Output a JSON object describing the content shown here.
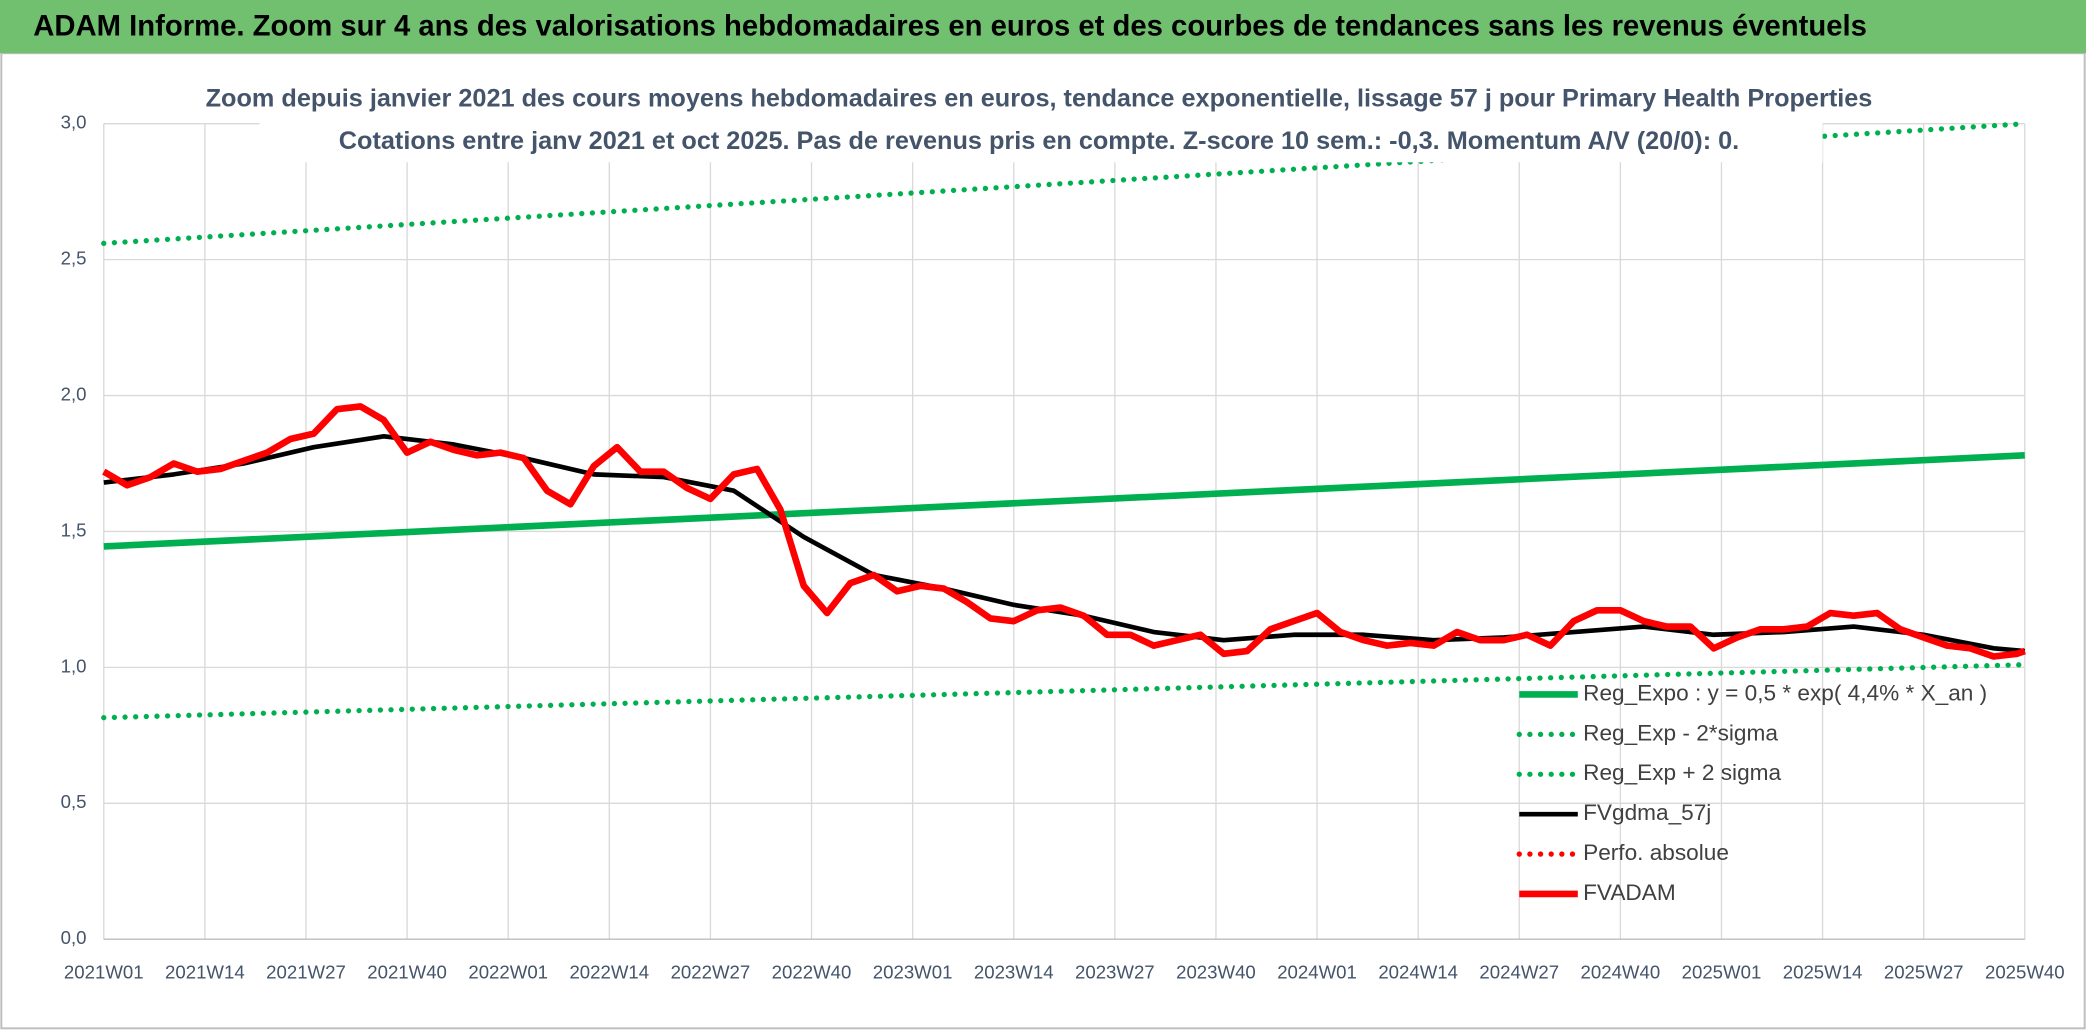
{
  "chart_data": {
    "type": "line",
    "title": "ADAM Informe. Zoom sur 4 ans des valorisations hebdomadaires en euros et des courbes de tendances sans les revenus éventuels",
    "subtitle": [
      "Zoom depuis janvier 2021 des cours moyens hebdomadaires en euros, tendance exponentielle, lissage 57 j pour Primary Health Properties",
      "Cotations entre janv 2021 et oct 2025. Pas de revenus pris en compte. Z-score 10 sem.: -0,3. Momentum A/V (20/0): 0."
    ],
    "xlim": [
      0,
      247
    ],
    "xticks": [
      {
        "value": 0,
        "label": "2021W01"
      },
      {
        "value": 13,
        "label": "2021W14"
      },
      {
        "value": 26,
        "label": "2021W27"
      },
      {
        "value": 39,
        "label": "2021W40"
      },
      {
        "value": 52,
        "label": "2022W01"
      },
      {
        "value": 65,
        "label": "2022W14"
      },
      {
        "value": 78,
        "label": "2022W27"
      },
      {
        "value": 91,
        "label": "2022W40"
      },
      {
        "value": 104,
        "label": "2023W01"
      },
      {
        "value": 117,
        "label": "2023W14"
      },
      {
        "value": 130,
        "label": "2023W27"
      },
      {
        "value": 143,
        "label": "2023W40"
      },
      {
        "value": 156,
        "label": "2024W01"
      },
      {
        "value": 169,
        "label": "2024W14"
      },
      {
        "value": 182,
        "label": "2024W27"
      },
      {
        "value": 195,
        "label": "2024W40"
      },
      {
        "value": 208,
        "label": "2025W01"
      },
      {
        "value": 221,
        "label": "2025W14"
      },
      {
        "value": 234,
        "label": "2025W27"
      },
      {
        "value": 247,
        "label": "2025W40"
      }
    ],
    "ylim": [
      0,
      3
    ],
    "yticks": [
      {
        "value": 0,
        "label": "0,0"
      },
      {
        "value": 0.5,
        "label": "0,5"
      },
      {
        "value": 1,
        "label": "1,0"
      },
      {
        "value": 1.5,
        "label": "1,5"
      },
      {
        "value": 2,
        "label": "2,0"
      },
      {
        "value": 2.5,
        "label": "2,5"
      },
      {
        "value": 3,
        "label": "3,0"
      }
    ],
    "grid": true,
    "legend": "lower right",
    "series": [
      {
        "name": "Reg_Expo : y = 0,5 * exp( 4,4% *  X_an )",
        "color": "#00b050",
        "style": "solid",
        "x": [
          0,
          247
        ],
        "values": [
          1.445,
          1.78
        ]
      },
      {
        "name": "Reg_Exp - 2*sigma",
        "color": "#00b050",
        "style": "dotted",
        "x": [
          0,
          247
        ],
        "values": [
          0.815,
          1.01
        ]
      },
      {
        "name": "Reg_Exp + 2 sigma",
        "color": "#00b050",
        "style": "dotted",
        "x": [
          0,
          247
        ],
        "values": [
          2.56,
          3.0
        ]
      },
      {
        "name": "FVgdma_57j",
        "color": "#000000",
        "style": "solid",
        "x": [
          0,
          9,
          18,
          27,
          36,
          45,
          54,
          63,
          72,
          81,
          90,
          99,
          108,
          117,
          126,
          135,
          144,
          153,
          162,
          171,
          180,
          189,
          198,
          207,
          216,
          225,
          234,
          243,
          247
        ],
        "values": [
          1.68,
          1.71,
          1.75,
          1.81,
          1.85,
          1.82,
          1.77,
          1.71,
          1.7,
          1.65,
          1.48,
          1.34,
          1.29,
          1.23,
          1.19,
          1.13,
          1.1,
          1.12,
          1.12,
          1.1,
          1.11,
          1.13,
          1.15,
          1.12,
          1.13,
          1.15,
          1.12,
          1.07,
          1.06
        ]
      },
      {
        "name": "Perfo. absolue",
        "color": "#ff0000",
        "style": "dotted",
        "x": [],
        "values": []
      },
      {
        "name": "FVADAM",
        "color": "#ff0000",
        "style": "solid",
        "x": [
          0,
          3,
          6,
          9,
          12,
          15,
          18,
          21,
          24,
          27,
          30,
          33,
          36,
          39,
          42,
          45,
          48,
          51,
          54,
          57,
          60,
          63,
          66,
          69,
          72,
          75,
          78,
          81,
          84,
          87,
          90,
          93,
          96,
          99,
          102,
          105,
          108,
          111,
          114,
          117,
          120,
          123,
          126,
          129,
          132,
          135,
          138,
          141,
          144,
          147,
          150,
          153,
          156,
          159,
          162,
          165,
          168,
          171,
          174,
          177,
          180,
          183,
          186,
          189,
          192,
          195,
          198,
          201,
          204,
          207,
          210,
          213,
          216,
          219,
          222,
          225,
          228,
          231,
          234,
          237,
          240,
          243,
          246,
          247
        ],
        "values": [
          1.72,
          1.67,
          1.7,
          1.75,
          1.72,
          1.73,
          1.76,
          1.79,
          1.84,
          1.86,
          1.95,
          1.96,
          1.91,
          1.79,
          1.83,
          1.8,
          1.78,
          1.79,
          1.77,
          1.65,
          1.6,
          1.74,
          1.81,
          1.72,
          1.72,
          1.66,
          1.62,
          1.71,
          1.73,
          1.58,
          1.3,
          1.2,
          1.31,
          1.34,
          1.28,
          1.3,
          1.29,
          1.24,
          1.18,
          1.17,
          1.21,
          1.22,
          1.19,
          1.12,
          1.12,
          1.08,
          1.1,
          1.12,
          1.05,
          1.06,
          1.14,
          1.17,
          1.2,
          1.13,
          1.1,
          1.08,
          1.09,
          1.08,
          1.13,
          1.1,
          1.1,
          1.12,
          1.08,
          1.17,
          1.21,
          1.21,
          1.17,
          1.15,
          1.15,
          1.07,
          1.11,
          1.14,
          1.14,
          1.15,
          1.2,
          1.19,
          1.2,
          1.14,
          1.11,
          1.08,
          1.07,
          1.04,
          1.05,
          1.06
        ]
      }
    ]
  }
}
